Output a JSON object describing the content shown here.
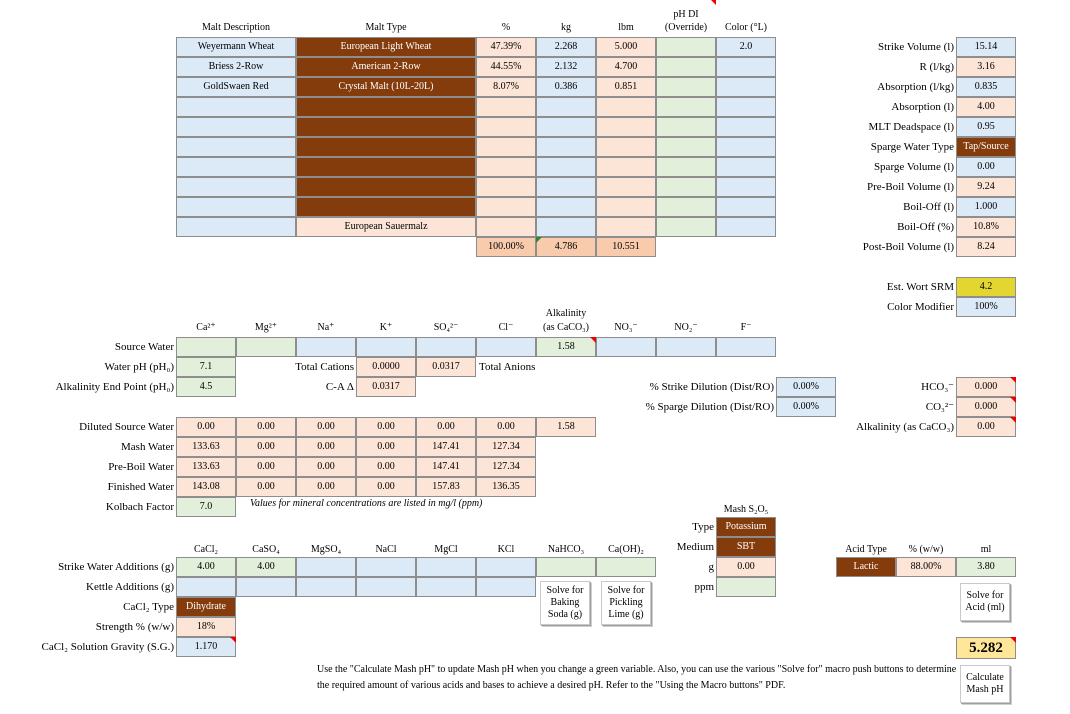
{
  "malt": {
    "headers": {
      "desc": "Malt Description",
      "type": "Malt Type",
      "pct": "%",
      "kg": "kg",
      "lbm": "lbm",
      "ph1": "pH DI",
      "ph2": "(Override)",
      "color": "Color (°L)"
    },
    "rows": [
      {
        "desc": "Weyermann Wheat",
        "type": "European Light Wheat",
        "pct": "47.39%",
        "kg": "2.268",
        "lbm": "5.000",
        "ph": "",
        "color": "2.0"
      },
      {
        "desc": "Briess 2-Row",
        "type": "American 2-Row",
        "pct": "44.55%",
        "kg": "2.132",
        "lbm": "4.700",
        "ph": "",
        "color": ""
      },
      {
        "desc": "GoldSwaen Red",
        "type": "Crystal Malt (10L-20L)",
        "pct": "8.07%",
        "kg": "0.386",
        "lbm": "0.851",
        "ph": "",
        "color": ""
      },
      {
        "desc": "",
        "type": "",
        "pct": "",
        "kg": "",
        "lbm": "",
        "ph": "",
        "color": ""
      },
      {
        "desc": "",
        "type": "",
        "pct": "",
        "kg": "",
        "lbm": "",
        "ph": "",
        "color": ""
      },
      {
        "desc": "",
        "type": "",
        "pct": "",
        "kg": "",
        "lbm": "",
        "ph": "",
        "color": ""
      },
      {
        "desc": "",
        "type": "",
        "pct": "",
        "kg": "",
        "lbm": "",
        "ph": "",
        "color": ""
      },
      {
        "desc": "",
        "type": "",
        "pct": "",
        "kg": "",
        "lbm": "",
        "ph": "",
        "color": ""
      },
      {
        "desc": "",
        "type": "",
        "pct": "",
        "kg": "",
        "lbm": "",
        "ph": "",
        "color": ""
      },
      {
        "desc": "",
        "type": "European Sauermalz",
        "pct": "",
        "kg": "",
        "lbm": "",
        "ph": "",
        "color": ""
      }
    ],
    "totals": {
      "pct": "100.00%",
      "kg": "4.786",
      "lbm": "10.551"
    }
  },
  "volumes": [
    {
      "label": "Strike Volume (l)",
      "value": "15.14",
      "style": "blue"
    },
    {
      "label": "R (l/kg)",
      "value": "3.16",
      "style": "pink"
    },
    {
      "label": "Absorption (l/kg)",
      "value": "0.835",
      "style": "blue"
    },
    {
      "label": "Absorption (l)",
      "value": "4.00",
      "style": "pink"
    },
    {
      "label": "MLT Deadspace (l)",
      "value": "0.95",
      "style": "blue"
    },
    {
      "label": "Sparge Water Type",
      "value": "Tap/Source",
      "style": "brown"
    },
    {
      "label": "Sparge Volume (l)",
      "value": "0.00",
      "style": "blue"
    },
    {
      "label": "Pre-Boil Volume (l)",
      "value": "9.24",
      "style": "pink"
    },
    {
      "label": "Boil-Off (l)",
      "value": "1.000",
      "style": "blue"
    },
    {
      "label": "Boil-Off (%)",
      "value": "10.8%",
      "style": "pink"
    },
    {
      "label": "Post-Boil Volume (l)",
      "value": "8.24",
      "style": "pink"
    }
  ],
  "srm": {
    "label": "Est. Wort SRM",
    "value": "4.2",
    "mod_label": "Color Modifier",
    "mod_value": "100%"
  },
  "ions": {
    "headers": [
      "Ca²⁺",
      "Mg²⁺",
      "Na⁺",
      "K⁺",
      "SO₄²⁻",
      "Cl⁻",
      "Alkalinity (as CaCO₃)",
      "NO₃⁻",
      "NO₂⁻",
      "F⁻"
    ],
    "alk_h1": "Alkalinity",
    "alk_h2": "(as CaCO₃)",
    "source_label": "Source Water",
    "source": [
      "",
      "",
      "",
      "",
      "",
      "",
      "1.58",
      "",
      "",
      ""
    ],
    "water_ph_label": "Water pH (pH₀)",
    "water_ph": "7.1",
    "alk_end_label": "Alkalinity End Point (pH₀)",
    "alk_end": "4.5",
    "total_cations_label": "Total Cations",
    "total_cations": "0.0000",
    "total_anions_val": "0.0317",
    "total_anions_label": "Total Anions",
    "ca_label": "C-A Δ",
    "ca_value": "0.0317",
    "rows": [
      {
        "label": "Diluted Source Water",
        "vals": [
          "0.00",
          "0.00",
          "0.00",
          "0.00",
          "0.00",
          "0.00",
          "1.58"
        ]
      },
      {
        "label": "Mash Water",
        "vals": [
          "133.63",
          "0.00",
          "0.00",
          "0.00",
          "147.41",
          "127.34"
        ]
      },
      {
        "label": "Pre-Boil Water",
        "vals": [
          "133.63",
          "0.00",
          "0.00",
          "0.00",
          "147.41",
          "127.34"
        ]
      },
      {
        "label": "Finished Water",
        "vals": [
          "143.08",
          "0.00",
          "0.00",
          "0.00",
          "157.83",
          "136.35"
        ]
      }
    ],
    "kolbach_label": "Kolbach Factor",
    "kolbach": "7.0",
    "note": "Values for mineral concentrations are listed in mg/l (ppm)"
  },
  "dilution": {
    "strike_label": "% Strike Dilution (Dist/RO)",
    "strike": "0.00%",
    "sparge_label": "% Sparge Dilution (Dist/RO)",
    "sparge": "0.00%"
  },
  "carbonate": [
    {
      "label": "HCO₃⁻",
      "value": "0.000"
    },
    {
      "label": "CO₃²⁻",
      "value": "0.000"
    },
    {
      "label": "Alkalinity (as CaCO₃)",
      "value": "0.00"
    }
  ],
  "additions": {
    "headers": [
      "CaCl₂",
      "CaSO₄",
      "MgSO₄",
      "NaCl",
      "MgCl",
      "KCl",
      "NaHCO₃",
      "Ca(OH)₂"
    ],
    "strike_label": "Strike Water Additions (g)",
    "strike": [
      "4.00",
      "4.00",
      "",
      "",
      "",
      "",
      "",
      ""
    ],
    "kettle_label": "Kettle Additions (g)",
    "cacl2_type_label": "CaCl₂ Type",
    "cacl2_type": "Dihydrate",
    "strength_label": "Strength % (w/w)",
    "strength": "18%",
    "gravity_label": "CaCl₂ Solution Gravity (S.G.)",
    "gravity": "1.170",
    "btn_baking": "Solve for Baking Soda (g)",
    "btn_lime": "Solve for Pickling Lime (g)"
  },
  "meta": {
    "header": "Mash S₂O₅",
    "type_label": "Type",
    "type": "Potassium",
    "medium_label": "Medium",
    "medium": "SBT",
    "g_label": "g",
    "g": "0.00",
    "ppm_label": "ppm",
    "ppm": ""
  },
  "acid": {
    "h_type": "Acid Type",
    "h_pct": "% (w/w)",
    "h_ml": "ml",
    "type": "Lactic",
    "pct": "88.00%",
    "ml": "3.80",
    "btn_solve": "Solve for Acid (ml)"
  },
  "mash_ph": "5.282",
  "calc_btn": "Calculate Mash pH",
  "footer": "Use the \"Calculate Mash pH\" to update Mash pH when you change a green variable. Also, you can use the various \"Solve for\" macro push buttons to determine the required amount of various acids and bases to achieve a desired pH. Refer to the \"Using the Macro buttons\" PDF."
}
